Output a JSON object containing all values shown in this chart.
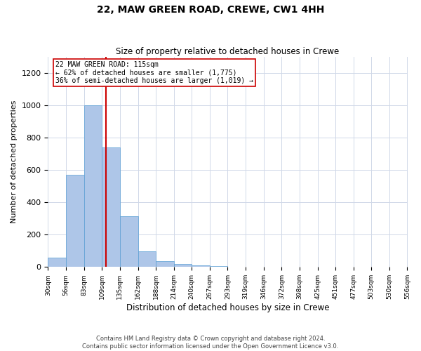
{
  "title": "22, MAW GREEN ROAD, CREWE, CW1 4HH",
  "subtitle": "Size of property relative to detached houses in Crewe",
  "xlabel": "Distribution of detached houses by size in Crewe",
  "ylabel": "Number of detached properties",
  "footer_line1": "Contains HM Land Registry data © Crown copyright and database right 2024.",
  "footer_line2": "Contains public sector information licensed under the Open Government Licence v3.0.",
  "annotation_line1": "22 MAW GREEN ROAD: 115sqm",
  "annotation_line2": "← 62% of detached houses are smaller (1,775)",
  "annotation_line3": "36% of semi-detached houses are larger (1,019) →",
  "bar_color": "#aec6e8",
  "bar_edge_color": "#5a9fd4",
  "ref_line_color": "#cc0000",
  "ref_line_x": 115,
  "bin_edges": [
    30,
    56,
    83,
    109,
    135,
    162,
    188,
    214,
    240,
    267,
    293,
    319,
    346,
    372,
    398,
    425,
    451,
    477,
    503,
    530,
    556
  ],
  "bin_heights": [
    60,
    570,
    1000,
    740,
    315,
    95,
    35,
    20,
    10,
    5,
    2,
    1,
    0,
    0,
    0,
    0,
    0,
    0,
    0,
    0
  ],
  "ylim": [
    0,
    1300
  ],
  "yticks": [
    0,
    200,
    400,
    600,
    800,
    1000,
    1200
  ],
  "background_color": "#ffffff",
  "grid_color": "#d0d8e8"
}
